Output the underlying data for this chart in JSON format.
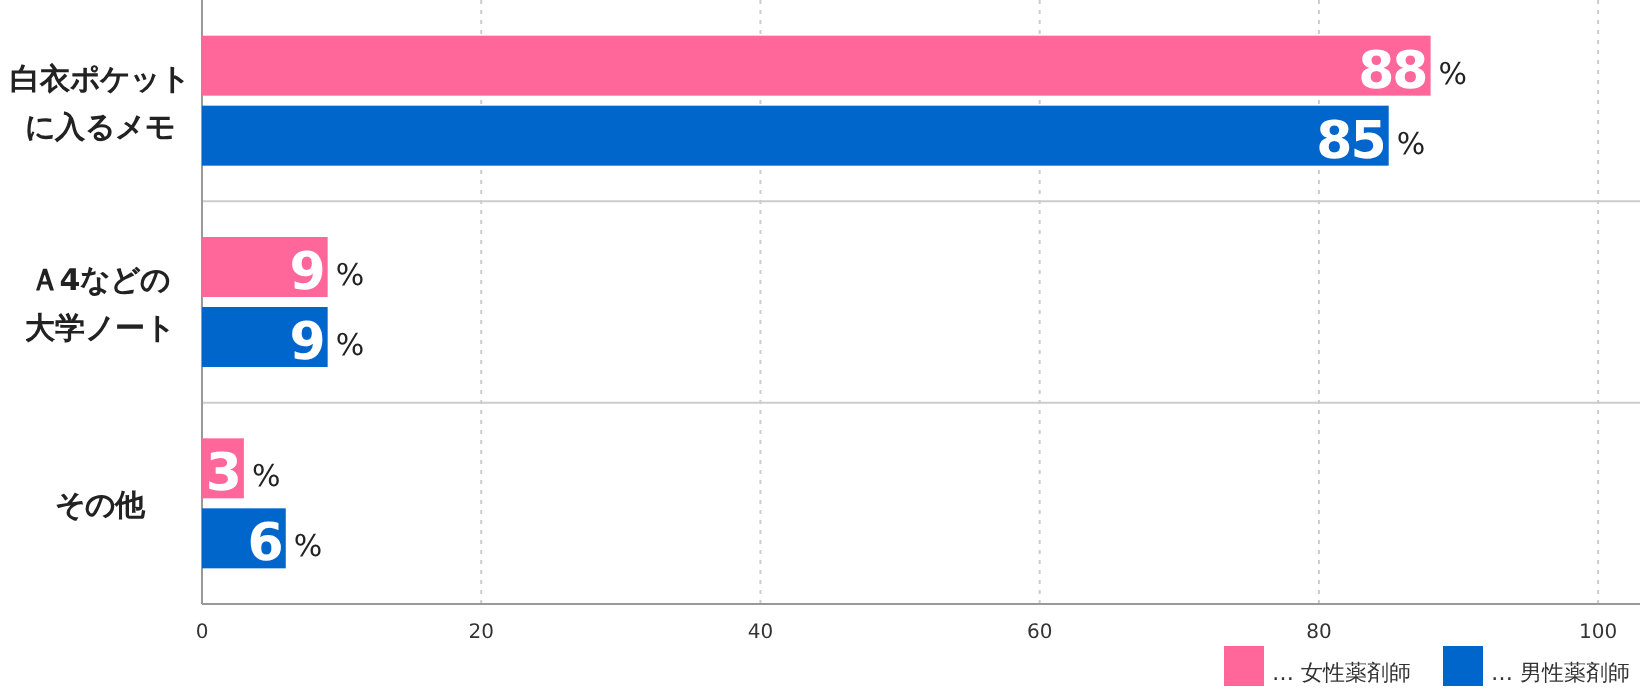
{
  "chart_data": {
    "type": "bar",
    "orientation": "horizontal",
    "categories": [
      "白衣ポケットに入るメモ",
      "Ａ4などの大学ノート",
      "その他"
    ],
    "series": [
      {
        "name": "… 女性薬剤師",
        "color": "#ff6699",
        "values": [
          88,
          9,
          3
        ],
        "value_labels": [
          "88%",
          "9%",
          "3%"
        ]
      },
      {
        "name": "… 男性薬剤師",
        "color": "#0066cc",
        "values": [
          85,
          9,
          6
        ],
        "value_labels": [
          "85%",
          "9%",
          "6%"
        ]
      }
    ],
    "xlim": [
      0,
      103
    ],
    "xticks": [
      0,
      20,
      40,
      60,
      80,
      100
    ],
    "grid": "x",
    "legend": "bottom right"
  }
}
